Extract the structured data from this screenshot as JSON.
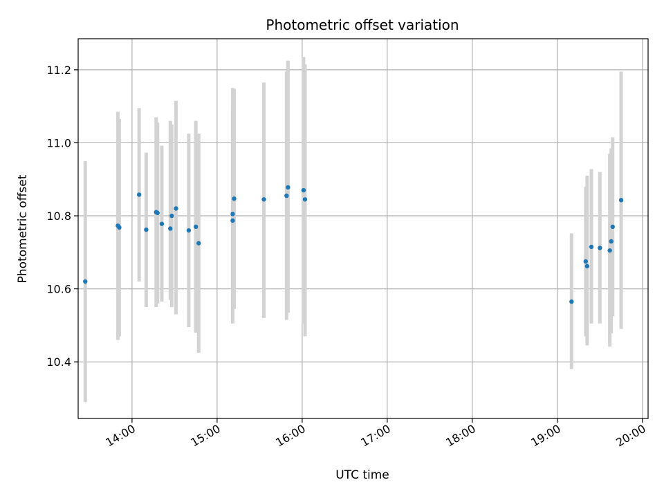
{
  "chart_data": {
    "type": "scatter",
    "title": "Photometric offset variation",
    "xlabel": "UTC time",
    "ylabel": "Photometric offset",
    "x_unit": "time of day (UTC)",
    "xlim": [
      "13:22",
      "20:04"
    ],
    "ylim": [
      10.245,
      11.285
    ],
    "x_ticks": [
      "14:00",
      "15:00",
      "16:00",
      "17:00",
      "18:00",
      "19:00",
      "20:00"
    ],
    "y_ticks": [
      "10.4",
      "10.6",
      "10.8",
      "11.0",
      "11.2"
    ],
    "grid": true,
    "marker_color": "#1f77b4",
    "errorbar_color": "#d3d3d3",
    "points": [
      {
        "t": "13:27",
        "y": 10.62,
        "lo": 10.29,
        "hi": 10.95
      },
      {
        "t": "13:50",
        "y": 10.773,
        "lo": 10.46,
        "hi": 11.085
      },
      {
        "t": "13:51",
        "y": 10.768,
        "lo": 10.47,
        "hi": 11.065
      },
      {
        "t": "14:05",
        "y": 10.858,
        "lo": 10.62,
        "hi": 11.095
      },
      {
        "t": "14:10",
        "y": 10.762,
        "lo": 10.55,
        "hi": 10.973
      },
      {
        "t": "14:17",
        "y": 10.81,
        "lo": 10.55,
        "hi": 11.07
      },
      {
        "t": "14:18",
        "y": 10.808,
        "lo": 10.56,
        "hi": 11.055
      },
      {
        "t": "14:21",
        "y": 10.778,
        "lo": 10.565,
        "hi": 10.992
      },
      {
        "t": "14:27",
        "y": 10.765,
        "lo": 10.57,
        "hi": 11.06
      },
      {
        "t": "14:28",
        "y": 10.8,
        "lo": 10.55,
        "hi": 11.05
      },
      {
        "t": "14:31",
        "y": 10.82,
        "lo": 10.53,
        "hi": 11.115
      },
      {
        "t": "14:40",
        "y": 10.76,
        "lo": 10.495,
        "hi": 11.025
      },
      {
        "t": "14:45",
        "y": 10.77,
        "lo": 10.48,
        "hi": 11.06
      },
      {
        "t": "14:47",
        "y": 10.725,
        "lo": 10.425,
        "hi": 11.025
      },
      {
        "t": "15:11",
        "y": 10.787,
        "lo": 10.505,
        "hi": 11.095
      },
      {
        "t": "15:11",
        "y": 10.805,
        "lo": 10.51,
        "hi": 11.15
      },
      {
        "t": "15:12",
        "y": 10.847,
        "lo": 10.545,
        "hi": 11.148
      },
      {
        "t": "15:33",
        "y": 10.845,
        "lo": 10.52,
        "hi": 11.165
      },
      {
        "t": "15:49",
        "y": 10.855,
        "lo": 10.515,
        "hi": 11.195
      },
      {
        "t": "15:50",
        "y": 10.878,
        "lo": 10.535,
        "hi": 11.225
      },
      {
        "t": "16:01",
        "y": 10.87,
        "lo": 10.505,
        "hi": 11.235
      },
      {
        "t": "16:02",
        "y": 10.845,
        "lo": 10.47,
        "hi": 11.215
      },
      {
        "t": "19:10",
        "y": 10.565,
        "lo": 10.38,
        "hi": 10.752
      },
      {
        "t": "19:20",
        "y": 10.675,
        "lo": 10.47,
        "hi": 10.88
      },
      {
        "t": "19:21",
        "y": 10.662,
        "lo": 10.445,
        "hi": 10.91
      },
      {
        "t": "19:24",
        "y": 10.715,
        "lo": 10.505,
        "hi": 10.928
      },
      {
        "t": "19:30",
        "y": 10.712,
        "lo": 10.505,
        "hi": 10.92
      },
      {
        "t": "19:37",
        "y": 10.705,
        "lo": 10.442,
        "hi": 10.97
      },
      {
        "t": "19:38",
        "y": 10.73,
        "lo": 10.478,
        "hi": 10.985
      },
      {
        "t": "19:39",
        "y": 10.77,
        "lo": 10.525,
        "hi": 11.015
      },
      {
        "t": "19:45",
        "y": 10.843,
        "lo": 10.49,
        "hi": 11.195
      }
    ]
  }
}
